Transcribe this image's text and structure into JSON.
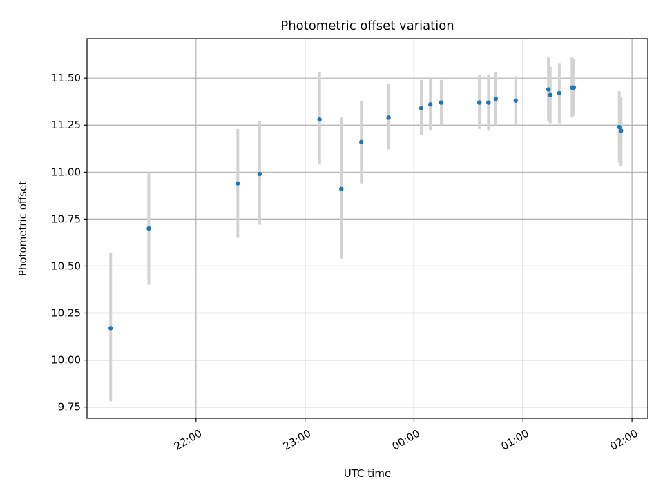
{
  "chart_data": {
    "type": "scatter",
    "title": "Photometric offset variation",
    "xlabel": "UTC time",
    "ylabel": "Photometric offset",
    "x_tick_labels": [
      "22:00",
      "23:00",
      "00:00",
      "01:00",
      "02:00"
    ],
    "x_ticks_hours": [
      22,
      23,
      24,
      25,
      26
    ],
    "xlim_hours": [
      21.0,
      26.145
    ],
    "y_ticks": [
      9.75,
      10.0,
      10.25,
      10.5,
      10.75,
      11.0,
      11.25,
      11.5
    ],
    "y_tick_labels": [
      "9.75",
      "10.00",
      "10.25",
      "10.50",
      "10.75",
      "11.00",
      "11.25",
      "11.50"
    ],
    "ylim": [
      9.69,
      11.71
    ],
    "grid": true,
    "point_color": "#1f77b4",
    "errorbar_color": "#d3d3d3",
    "series": [
      {
        "points": [
          {
            "x": "21:13",
            "y": 10.17,
            "ymin": 9.78,
            "ymax": 10.57
          },
          {
            "x": "21:34",
            "y": 10.7,
            "ymin": 10.4,
            "ymax": 11.0
          },
          {
            "x": "22:23",
            "y": 10.94,
            "ymin": 10.65,
            "ymax": 11.23
          },
          {
            "x": "22:35",
            "y": 10.99,
            "ymin": 10.72,
            "ymax": 11.27
          },
          {
            "x": "23:08",
            "y": 11.28,
            "ymin": 11.04,
            "ymax": 11.53
          },
          {
            "x": "23:20",
            "y": 10.91,
            "ymin": 10.54,
            "ymax": 11.29
          },
          {
            "x": "23:31",
            "y": 11.16,
            "ymin": 10.94,
            "ymax": 11.38
          },
          {
            "x": "23:46",
            "y": 11.29,
            "ymin": 11.12,
            "ymax": 11.47
          },
          {
            "x": "00:04",
            "y": 11.34,
            "ymin": 11.2,
            "ymax": 11.49
          },
          {
            "x": "00:09",
            "y": 11.36,
            "ymin": 11.22,
            "ymax": 11.5
          },
          {
            "x": "00:15",
            "y": 11.37,
            "ymin": 11.25,
            "ymax": 11.49
          },
          {
            "x": "00:36",
            "y": 11.37,
            "ymin": 11.23,
            "ymax": 11.52
          },
          {
            "x": "00:41",
            "y": 11.37,
            "ymin": 11.22,
            "ymax": 11.52
          },
          {
            "x": "00:45",
            "y": 11.39,
            "ymin": 11.25,
            "ymax": 11.53
          },
          {
            "x": "00:56",
            "y": 11.38,
            "ymin": 11.25,
            "ymax": 11.51
          },
          {
            "x": "01:14",
            "y": 11.44,
            "ymin": 11.27,
            "ymax": 11.61
          },
          {
            "x": "01:15",
            "y": 11.41,
            "ymin": 11.26,
            "ymax": 11.56
          },
          {
            "x": "01:20",
            "y": 11.42,
            "ymin": 11.26,
            "ymax": 11.58
          },
          {
            "x": "01:27",
            "y": 11.45,
            "ymin": 11.29,
            "ymax": 11.61
          },
          {
            "x": "01:28",
            "y": 11.45,
            "ymin": 11.3,
            "ymax": 11.6
          },
          {
            "x": "01:53",
            "y": 11.24,
            "ymin": 11.05,
            "ymax": 11.43
          },
          {
            "x": "01:54",
            "y": 11.22,
            "ymin": 11.03,
            "ymax": 11.4
          }
        ]
      }
    ]
  }
}
